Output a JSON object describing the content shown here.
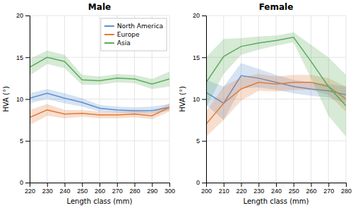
{
  "chart_data": [
    {
      "type": "line",
      "title": "Male",
      "xlabel": "Length class (mm)",
      "ylabel": "HVA (°)",
      "x": [
        220,
        230,
        240,
        250,
        260,
        270,
        280,
        290,
        300
      ],
      "xlim": [
        220,
        300
      ],
      "xticks": [
        220,
        230,
        240,
        250,
        260,
        270,
        280,
        290,
        300
      ],
      "ylim": [
        0,
        20
      ],
      "yticks": [
        0,
        5,
        10,
        15,
        20
      ],
      "grid": true,
      "legend": "upper right",
      "series": [
        {
          "name": "North America",
          "color": "#5b8fcf",
          "values": [
            10.1,
            10.7,
            10.1,
            9.6,
            8.9,
            8.7,
            8.6,
            8.6,
            9.0
          ],
          "ci_low": [
            9.5,
            10.0,
            9.5,
            9.1,
            8.5,
            8.4,
            8.3,
            8.3,
            8.6
          ],
          "ci_high": [
            10.7,
            11.2,
            10.7,
            10.1,
            9.3,
            9.1,
            9.0,
            9.1,
            9.4
          ]
        },
        {
          "name": "Europe",
          "color": "#e07b3a",
          "values": [
            7.8,
            8.7,
            8.2,
            8.3,
            8.1,
            8.1,
            8.2,
            8.0,
            9.0
          ],
          "ci_low": [
            6.9,
            8.0,
            7.7,
            7.9,
            7.7,
            7.7,
            7.8,
            7.6,
            8.5
          ],
          "ci_high": [
            8.7,
            9.4,
            8.7,
            8.7,
            8.5,
            8.5,
            8.6,
            8.4,
            9.5
          ]
        },
        {
          "name": "Asia",
          "color": "#5aab5a",
          "values": [
            13.8,
            15.0,
            14.5,
            12.3,
            12.2,
            12.5,
            12.4,
            11.8,
            12.4
          ],
          "ci_low": [
            12.8,
            14.2,
            13.7,
            11.7,
            11.7,
            12.0,
            11.9,
            11.2,
            11.5
          ],
          "ci_high": [
            14.8,
            15.8,
            15.3,
            12.9,
            12.7,
            13.0,
            12.9,
            12.4,
            13.3
          ]
        }
      ]
    },
    {
      "type": "line",
      "title": "Female",
      "xlabel": "Length class (mm)",
      "ylabel": "HVA (°)",
      "x": [
        200,
        210,
        220,
        230,
        240,
        250,
        260,
        270,
        280
      ],
      "xlim": [
        200,
        280
      ],
      "xticks": [
        200,
        210,
        220,
        230,
        240,
        250,
        260,
        270,
        280
      ],
      "ylim": [
        0,
        20
      ],
      "yticks": [
        0,
        5,
        10,
        15,
        20
      ],
      "grid": true,
      "series": [
        {
          "color": "#5b8fcf",
          "values": [
            10.8,
            9.5,
            12.8,
            12.5,
            12.0,
            11.5,
            11.2,
            11.0,
            10.5
          ],
          "ci_low": [
            9.3,
            7.5,
            11.3,
            11.4,
            11.1,
            10.7,
            10.4,
            10.2,
            9.5
          ],
          "ci_high": [
            12.3,
            11.5,
            14.3,
            13.6,
            12.9,
            12.3,
            12.0,
            11.8,
            11.5
          ]
        },
        {
          "color": "#e07b3a",
          "values": [
            7.0,
            9.5,
            11.2,
            12.0,
            11.8,
            12.0,
            12.0,
            11.5,
            10.0
          ],
          "ci_low": [
            5.5,
            7.5,
            9.8,
            11.0,
            10.9,
            11.1,
            11.1,
            10.5,
            8.5
          ],
          "ci_high": [
            8.5,
            11.5,
            12.6,
            13.0,
            12.7,
            12.9,
            12.9,
            12.5,
            11.5
          ]
        },
        {
          "color": "#5aab5a",
          "values": [
            12.0,
            15.1,
            16.3,
            16.7,
            17.0,
            17.4,
            14.5,
            11.5,
            9.2
          ],
          "ci_low": [
            9.0,
            13.0,
            15.3,
            15.9,
            16.4,
            16.8,
            12.5,
            8.0,
            5.5
          ],
          "ci_high": [
            15.0,
            17.2,
            17.3,
            17.5,
            17.6,
            18.0,
            16.5,
            15.0,
            12.9
          ]
        }
      ]
    }
  ]
}
